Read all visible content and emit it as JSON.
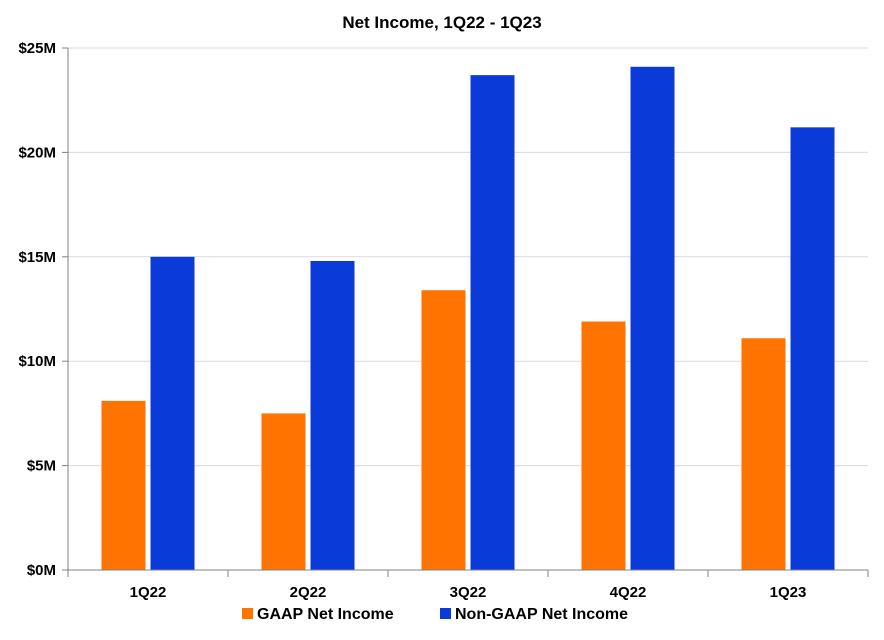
{
  "chart_data": {
    "type": "bar",
    "title": "Net Income, 1Q22 - 1Q23",
    "xlabel": "",
    "ylabel": "",
    "categories": [
      "1Q22",
      "2Q22",
      "3Q22",
      "4Q22",
      "1Q23"
    ],
    "series": [
      {
        "name": "GAAP Net Income",
        "color": "#ff7300",
        "values": [
          8.1,
          7.5,
          13.4,
          11.9,
          11.1
        ]
      },
      {
        "name": "Non-GAAP Net Income",
        "color": "#0a3bd9",
        "values": [
          15.0,
          14.8,
          23.7,
          24.1,
          21.2
        ]
      }
    ],
    "ylim": [
      0,
      25
    ],
    "yticks": [
      0,
      5,
      10,
      15,
      20,
      25
    ],
    "ytick_labels": [
      "$0M",
      "$5M",
      "$10M",
      "$15M",
      "$20M",
      "$25M"
    ],
    "grid": true,
    "legend_position": "bottom-center"
  }
}
